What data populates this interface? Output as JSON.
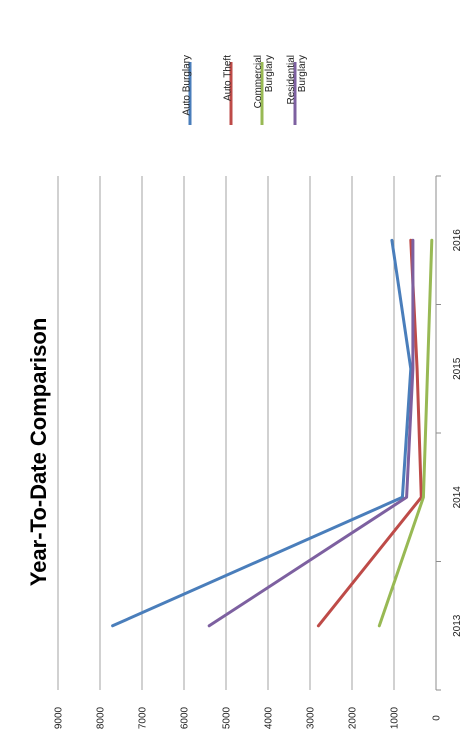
{
  "chart_data": {
    "type": "line",
    "title": "Year-To-Date Comparison",
    "xlabel": "",
    "ylabel": "",
    "categories": [
      "2013",
      "2014",
      "2015",
      "2016"
    ],
    "ylim": [
      0,
      9000
    ],
    "yticks": [
      "0",
      "1000",
      "2000",
      "3000",
      "4000",
      "5000",
      "6000",
      "7000",
      "8000",
      "9000"
    ],
    "grid": true,
    "legend_position": "right",
    "orientation": "rotated-90",
    "series": [
      {
        "name": "Auto Burglary",
        "color": "#4a7ebb",
        "values": [
          7700,
          800,
          600,
          1050
        ]
      },
      {
        "name": "Auto Theft",
        "color": "#be4b48",
        "values": [
          2800,
          350,
          450,
          600
        ]
      },
      {
        "name": "Commercial Burglary",
        "name_lines": [
          "Commercial",
          "Burglary"
        ],
        "color": "#98b954",
        "values": [
          1350,
          300,
          200,
          100
        ]
      },
      {
        "name": "Residential Burglary",
        "name_lines": [
          "Residential",
          "Burglary"
        ],
        "color": "#7d60a0",
        "values": [
          5400,
          700,
          550,
          550
        ]
      }
    ]
  }
}
